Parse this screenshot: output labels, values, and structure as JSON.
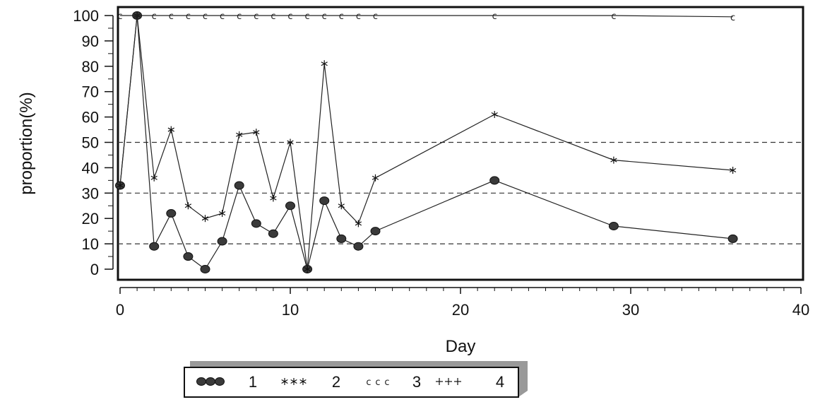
{
  "chart_data": {
    "type": "line",
    "title": "",
    "xlabel": "Day",
    "ylabel": "proportion(%)",
    "xlim": [
      0,
      40
    ],
    "ylim": [
      -4,
      103
    ],
    "xticks": [
      0,
      10,
      20,
      30,
      40
    ],
    "yticks": [
      0,
      10,
      20,
      30,
      40,
      50,
      60,
      70,
      80,
      90,
      100
    ],
    "grid": false,
    "reference_lines_y": [
      10,
      30,
      50
    ],
    "legend_position": "bottom",
    "series": [
      {
        "name": "1",
        "marker": "filled-circle",
        "legend_symbol": "●●●",
        "x": [
          0,
          1,
          2,
          3,
          4,
          5,
          6,
          7,
          8,
          9,
          10,
          11,
          12,
          13,
          14,
          15,
          22,
          29,
          36
        ],
        "values": [
          33,
          100,
          9,
          22,
          5,
          0,
          11,
          33,
          18,
          14,
          25,
          0,
          27,
          12,
          9,
          15,
          35,
          17,
          12
        ]
      },
      {
        "name": "2",
        "marker": "star",
        "legend_symbol": "***",
        "x": [
          0,
          1,
          2,
          3,
          4,
          5,
          6,
          7,
          8,
          9,
          10,
          11,
          12,
          13,
          14,
          15,
          22,
          29,
          36
        ],
        "values": [
          33,
          100,
          36,
          55,
          25,
          20,
          22,
          53,
          54,
          28,
          50,
          0,
          81,
          25,
          18,
          36,
          61,
          43,
          39
        ]
      },
      {
        "name": "3",
        "marker": "letter-c",
        "legend_symbol": "ccc",
        "x": [
          0,
          1,
          2,
          3,
          4,
          5,
          6,
          7,
          8,
          9,
          10,
          11,
          12,
          13,
          14,
          15,
          22,
          29,
          36
        ],
        "values": [
          100,
          100,
          100,
          100,
          100,
          100,
          100,
          100,
          100,
          100,
          100,
          100,
          100,
          100,
          100,
          100,
          100,
          100,
          99.5
        ]
      },
      {
        "name": "4",
        "marker": "plus",
        "legend_symbol": "+++",
        "x": [],
        "values": []
      }
    ]
  }
}
